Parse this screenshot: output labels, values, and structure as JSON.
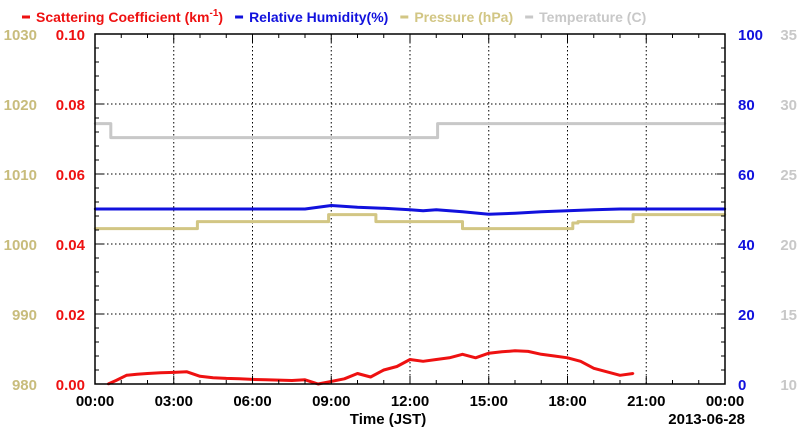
{
  "chart_data": {
    "type": "line",
    "date_label": "2013-06-28",
    "xlabel": "Time (JST)",
    "x_ticks": [
      "00:00",
      "03:00",
      "06:00",
      "09:00",
      "12:00",
      "15:00",
      "18:00",
      "21:00",
      "00:00"
    ],
    "xlim_hours": [
      0,
      24
    ],
    "grid": true,
    "legend": {
      "placement": "top",
      "entries": [
        {
          "label": "Scattering Coefficient (km",
          "sup": "-1",
          "suffix": ")",
          "color": "#ee1111"
        },
        {
          "label": "Relative Humidity(%)",
          "color": "#1111dd"
        },
        {
          "label": "Pressure (hPa)",
          "color": "#d2c684"
        },
        {
          "label": "Temperature (C)",
          "color": "#c8c8c8"
        }
      ]
    },
    "axes": {
      "scattering": {
        "side": "left-inner",
        "ylim": [
          0,
          0.1
        ],
        "ticks": [
          "0.00",
          "0.02",
          "0.04",
          "0.06",
          "0.08",
          "0.10"
        ],
        "color": "#ee1111"
      },
      "pressure": {
        "side": "left-outer",
        "ylim": [
          980,
          1030
        ],
        "ticks": [
          "980",
          "990",
          "1000",
          "1010",
          "1020",
          "1030"
        ],
        "color": "#c8bc7c"
      },
      "humidity": {
        "side": "right-inner",
        "ylim": [
          0,
          100
        ],
        "ticks": [
          "0",
          "20",
          "40",
          "60",
          "80",
          "100"
        ],
        "color": "#1111dd"
      },
      "temperature": {
        "side": "right-outer",
        "ylim": [
          10,
          35
        ],
        "ticks": [
          "10",
          "15",
          "20",
          "25",
          "30",
          "35"
        ],
        "color": "#c8c8c8"
      }
    },
    "series": [
      {
        "name": "Temperature (C)",
        "axis": "temperature",
        "color": "#c8c8c8",
        "x": [
          0,
          0.6,
          0.6,
          13.05,
          13.05,
          24
        ],
        "y": [
          28.6,
          28.6,
          27.6,
          27.6,
          28.6,
          28.6
        ]
      },
      {
        "name": "Pressure (hPa)",
        "axis": "pressure",
        "color": "#d2c684",
        "x": [
          0,
          3.9,
          3.9,
          8.9,
          8.9,
          10.7,
          10.7,
          14,
          14,
          18.2,
          18.2,
          18.4,
          18.4,
          20.5,
          20.5,
          24
        ],
        "y": [
          1002.2,
          1002.2,
          1003.2,
          1003.2,
          1004.2,
          1004.2,
          1003.2,
          1003.2,
          1002.2,
          1002.2,
          1003,
          1003,
          1003.2,
          1003.2,
          1004.2,
          1004.2
        ]
      },
      {
        "name": "Relative Humidity(%)",
        "axis": "humidity",
        "color": "#1111dd",
        "x": [
          0,
          4.5,
          7.0,
          8.0,
          8.5,
          9.0,
          10.0,
          11.0,
          12.0,
          12.5,
          13.0,
          14.0,
          15.0,
          16.0,
          17.0,
          18.0,
          19.0,
          20.0,
          21.0,
          24
        ],
        "y": [
          50,
          50,
          50,
          50,
          50.5,
          51,
          50.5,
          50.2,
          49.8,
          49.5,
          49.8,
          49.2,
          48.5,
          48.8,
          49.2,
          49.5,
          49.8,
          50,
          50,
          50
        ]
      },
      {
        "name": "Scattering Coefficient",
        "axis": "scattering",
        "color": "#ee1111",
        "x": [
          0.5,
          0.8,
          1.2,
          1.6,
          2.0,
          2.5,
          3.0,
          3.5,
          4.0,
          4.5,
          5.0,
          5.5,
          6.0,
          6.5,
          7.0,
          7.5,
          8.0,
          8.5,
          9.5,
          10.0,
          10.5,
          11.0,
          11.5,
          12.0,
          12.5,
          13.0,
          13.5,
          14.0,
          14.5,
          15.0,
          15.5,
          16.0,
          16.5,
          17.0,
          17.5,
          18.0,
          18.5,
          19.0,
          19.5,
          20.0,
          20.5
        ],
        "y": [
          0.0,
          0.001,
          0.0025,
          0.0028,
          0.003,
          0.0032,
          0.0033,
          0.0035,
          0.0022,
          0.0018,
          0.0016,
          0.0015,
          0.0013,
          0.0012,
          0.0011,
          0.001,
          0.0012,
          0.0,
          0.0015,
          0.003,
          0.002,
          0.004,
          0.005,
          0.007,
          0.0065,
          0.007,
          0.0075,
          0.0085,
          0.0075,
          0.0088,
          0.0092,
          0.0095,
          0.0093,
          0.0085,
          0.008,
          0.0075,
          0.0065,
          0.0045,
          0.0035,
          0.0025,
          0.003
        ]
      }
    ]
  }
}
